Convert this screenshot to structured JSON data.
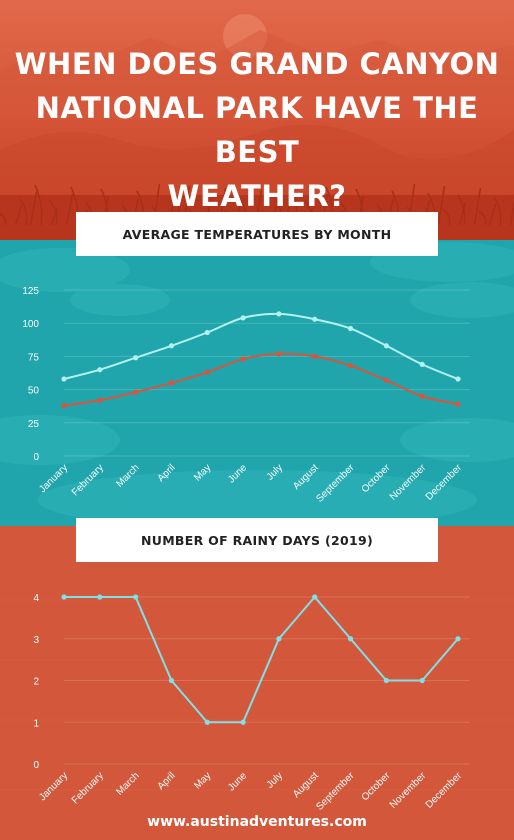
{
  "title_lines": [
    "WHEN DOES GRAND CANYON",
    "NATIONAL PARK HAVE THE BEST",
    "WEATHER?"
  ],
  "footer": "www.austinadventures.com",
  "colors": {
    "sunset_top": "#e0684a",
    "sunset_bottom": "#c84026",
    "teal": "#1fa5ab",
    "orange": "#d3583b",
    "light_series": "#b3f1ef",
    "dark_series": "#d9553c",
    "rain_series": "#7fe0e8"
  },
  "chart_data": [
    {
      "type": "line",
      "title": "AVERAGE TEMPERATURES BY MONTH",
      "categories": [
        "January",
        "February",
        "March",
        "April",
        "May",
        "June",
        "July",
        "August",
        "September",
        "October",
        "November",
        "December"
      ],
      "ylim": [
        0,
        125
      ],
      "yticks": [
        0,
        25,
        50,
        75,
        100,
        125
      ],
      "grid": true,
      "legend": "none",
      "series": [
        {
          "color": "light",
          "values": [
            58,
            65,
            74,
            83,
            93,
            104,
            107,
            103,
            96,
            83,
            69,
            58
          ]
        },
        {
          "color": "dark",
          "values": [
            38,
            42,
            48,
            55,
            63,
            73,
            77,
            75,
            68,
            57,
            45,
            39
          ]
        }
      ]
    },
    {
      "type": "line",
      "title": "NUMBER OF RAINY DAYS (2019)",
      "categories": [
        "January",
        "February",
        "March",
        "April",
        "May",
        "June",
        "July",
        "August",
        "September",
        "October",
        "November",
        "December"
      ],
      "ylim": [
        0,
        4
      ],
      "yticks": [
        0,
        1,
        2,
        3,
        4
      ],
      "grid": true,
      "legend": "none",
      "series": [
        {
          "color": "rain",
          "values": [
            4,
            4,
            4,
            2,
            1,
            1,
            3,
            4,
            3,
            2,
            2,
            3
          ]
        }
      ]
    }
  ]
}
